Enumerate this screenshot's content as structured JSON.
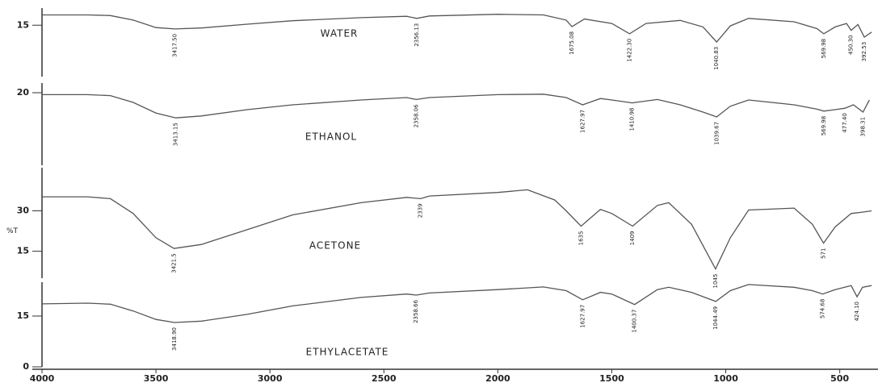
{
  "chart_data": [
    {
      "type": "line",
      "title": "WATER",
      "color": "#555",
      "x": [
        4000,
        3800,
        3700,
        3600,
        3500,
        3417.5,
        3300,
        3100,
        2900,
        2600,
        2400,
        2356,
        2300,
        2000,
        1800,
        1700,
        1675,
        1620,
        1500,
        1422,
        1350,
        1200,
        1100,
        1040,
        980,
        900,
        700,
        600,
        570,
        520,
        470,
        450,
        420,
        392,
        360
      ],
      "values": [
        18.0,
        18.0,
        17.8,
        16.5,
        14.3,
        13.9,
        14.2,
        15.3,
        16.3,
        17.2,
        17.6,
        17.0,
        17.7,
        18.2,
        18.0,
        16.5,
        14.6,
        16.8,
        15.5,
        12.5,
        15.5,
        16.4,
        14.5,
        10.1,
        14.8,
        17.0,
        16.0,
        14.0,
        12.5,
        14.5,
        15.5,
        13.5,
        15.2,
        11.5,
        13.0
      ],
      "xlim": [
        4000,
        350
      ],
      "ylim": [
        0,
        20
      ],
      "yticks": [
        15
      ],
      "annotations": [
        {
          "x": 3417.5,
          "label": "3417.50"
        },
        {
          "x": 2356.13,
          "label": "2356.13"
        },
        {
          "x": 1675.08,
          "label": "1675.08"
        },
        {
          "x": 1422.3,
          "label": "1422.30"
        },
        {
          "x": 1040.83,
          "label": "1040.83"
        },
        {
          "x": 569.98,
          "label": "569.98"
        },
        {
          "x": 450.3,
          "label": "450.30"
        },
        {
          "x": 392.53,
          "label": "392.53"
        }
      ]
    },
    {
      "type": "line",
      "title": "ETHANOL",
      "color": "#555",
      "x": [
        4000,
        3800,
        3700,
        3600,
        3500,
        3413,
        3300,
        3100,
        2900,
        2600,
        2400,
        2358,
        2300,
        2000,
        1800,
        1700,
        1628,
        1550,
        1500,
        1411,
        1300,
        1200,
        1100,
        1040,
        980,
        900,
        700,
        600,
        570,
        520,
        477,
        440,
        398,
        370
      ],
      "values": [
        19.6,
        19.6,
        19.4,
        18.0,
        15.8,
        14.8,
        15.2,
        16.5,
        17.5,
        18.5,
        19.0,
        18.6,
        19.0,
        19.6,
        19.7,
        19.0,
        17.5,
        18.8,
        18.5,
        17.9,
        18.6,
        17.5,
        16.0,
        15.0,
        17.2,
        18.5,
        17.5,
        16.6,
        16.2,
        16.5,
        16.8,
        17.5,
        16.0,
        18.5
      ],
      "xlim": [
        4000,
        350
      ],
      "ylim": [
        5,
        22
      ],
      "yticks": [
        20
      ],
      "annotations": [
        {
          "x": 3413.15,
          "label": "3413.15"
        },
        {
          "x": 2358.06,
          "label": "2358.06"
        },
        {
          "x": 1627.97,
          "label": "1627.97"
        },
        {
          "x": 1410.98,
          "label": "1410.98"
        },
        {
          "x": 1039.67,
          "label": "1039.67"
        },
        {
          "x": 569.98,
          "label": "569.98"
        },
        {
          "x": 477.4,
          "label": "477.40"
        },
        {
          "x": 398.31,
          "label": "398.31"
        }
      ]
    },
    {
      "type": "line",
      "title": "ACETONE",
      "color": "#555",
      "ylabel": "%T",
      "x": [
        4000,
        3800,
        3700,
        3600,
        3500,
        3421,
        3300,
        3100,
        2900,
        2600,
        2400,
        2339,
        2300,
        2000,
        1870,
        1750,
        1700,
        1635,
        1550,
        1500,
        1409,
        1300,
        1250,
        1150,
        1045,
        980,
        900,
        700,
        620,
        571,
        520,
        450,
        400,
        360
      ],
      "values": [
        35.2,
        35.2,
        34.5,
        29.0,
        20.0,
        16.0,
        17.5,
        23.0,
        28.5,
        33.0,
        35.0,
        34.5,
        35.5,
        36.8,
        37.8,
        34.0,
        30.0,
        24.3,
        30.5,
        29.0,
        24.3,
        32.0,
        33.0,
        25.0,
        8.4,
        20.0,
        30.3,
        31.0,
        25.0,
        18.0,
        24.0,
        29.0,
        29.5,
        30.0
      ],
      "xlim": [
        4000,
        350
      ],
      "ylim": [
        5,
        46
      ],
      "yticks": [
        30,
        15
      ],
      "annotations": [
        {
          "x": 3421,
          "label": "3421.5"
        },
        {
          "x": 2339,
          "label": "2339"
        },
        {
          "x": 1635,
          "label": "1635"
        },
        {
          "x": 1409,
          "label": "1409"
        },
        {
          "x": 1045,
          "label": "1045"
        },
        {
          "x": 571,
          "label": "571"
        }
      ]
    },
    {
      "type": "line",
      "title": "ETHYLACETATE",
      "color": "#555",
      "x": [
        4000,
        3800,
        3700,
        3600,
        3500,
        3419,
        3300,
        3100,
        2900,
        2600,
        2400,
        2358,
        2300,
        2000,
        1800,
        1700,
        1628,
        1550,
        1500,
        1400,
        1300,
        1250,
        1150,
        1044,
        980,
        900,
        700,
        620,
        575,
        520,
        450,
        424,
        400,
        360
      ],
      "values": [
        18.6,
        18.8,
        18.5,
        16.5,
        14.0,
        13.1,
        13.5,
        15.5,
        18.0,
        20.5,
        21.5,
        21.2,
        21.8,
        22.8,
        23.6,
        22.5,
        19.8,
        22.0,
        21.5,
        18.4,
        22.8,
        23.5,
        22.0,
        19.3,
        22.5,
        24.3,
        23.5,
        22.5,
        21.5,
        22.8,
        24.0,
        20.7,
        23.5,
        24.0
      ],
      "xlim": [
        4000,
        350
      ],
      "ylim": [
        0,
        25
      ],
      "yticks": [
        15,
        0
      ],
      "xticks": [
        4000,
        3500,
        3000,
        2500,
        2000,
        1500,
        1000,
        500
      ],
      "annotations": [
        {
          "x": 3418.9,
          "label": "3418.90"
        },
        {
          "x": 2358.66,
          "label": "2358.66"
        },
        {
          "x": 1627.97,
          "label": "1627.97"
        },
        {
          "x": 1400.37,
          "label": "1400.37"
        },
        {
          "x": 1044.49,
          "label": "1044.49"
        },
        {
          "x": 574.68,
          "label": "574.68"
        },
        {
          "x": 424.1,
          "label": "424.10"
        }
      ]
    }
  ]
}
